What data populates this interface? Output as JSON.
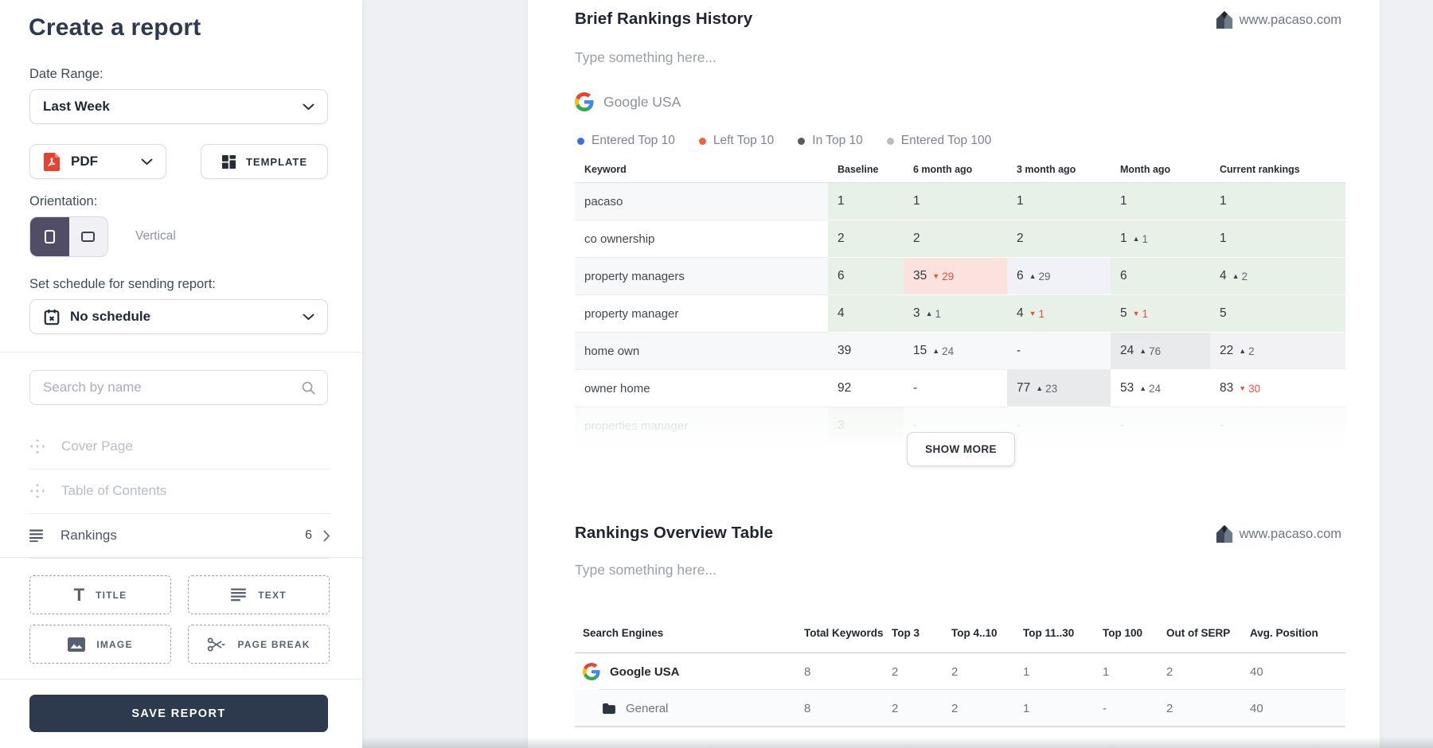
{
  "sidebar": {
    "title": "Create a report",
    "date_range_label": "Date Range:",
    "date_range_value": "Last Week",
    "format_value": "PDF",
    "template_label": "TEMPLATE",
    "orientation_label": "Orientation:",
    "orientation_value": "Vertical",
    "schedule_label": "Set schedule for sending report:",
    "schedule_value": "No schedule",
    "search_placeholder": "Search by name",
    "sections": [
      {
        "label": "Cover Page",
        "disabled": true
      },
      {
        "label": "Table of Contents",
        "disabled": true
      },
      {
        "label": "Rankings",
        "disabled": false,
        "count": "6"
      }
    ],
    "widgets": [
      {
        "icon": "title-icon",
        "label": "TITLE"
      },
      {
        "icon": "text-icon",
        "label": "TEXT"
      },
      {
        "icon": "image-icon",
        "label": "IMAGE"
      },
      {
        "icon": "page-break-icon",
        "label": "PAGE BREAK"
      }
    ],
    "save_label": "SAVE REPORT"
  },
  "report": {
    "domain": "www.pacaso.com",
    "brief": {
      "title": "Brief Rankings History",
      "placeholder": "Type something here...",
      "engine": "Google USA",
      "show_more": "SHOW MORE",
      "legend": [
        {
          "label": "Entered Top 10",
          "color": "#3b6de4"
        },
        {
          "label": "Left Top 10",
          "color": "#f0623d"
        },
        {
          "label": "In Top 10",
          "color": "#565b63"
        },
        {
          "label": "Entered Top 100",
          "color": "#b9bdc3"
        }
      ],
      "table": {
        "columns": [
          "Keyword",
          "Baseline",
          "6 month ago",
          "3 month ago",
          "Month ago",
          "Current rankings"
        ],
        "rows": [
          {
            "keyword": "pacaso",
            "cells": [
              {
                "v": "1",
                "bg": "green"
              },
              {
                "v": "1",
                "bg": "green"
              },
              {
                "v": "1",
                "bg": "green"
              },
              {
                "v": "1",
                "bg": "green"
              },
              {
                "v": "1",
                "bg": "green"
              }
            ]
          },
          {
            "keyword": "co ownership",
            "cells": [
              {
                "v": "2",
                "bg": "green"
              },
              {
                "v": "2",
                "bg": "green"
              },
              {
                "v": "2",
                "bg": "green"
              },
              {
                "v": "1",
                "delta": "1",
                "dir": "up",
                "bg": "green"
              },
              {
                "v": "1",
                "bg": "green"
              }
            ]
          },
          {
            "keyword": "property managers",
            "cells": [
              {
                "v": "6",
                "bg": "green"
              },
              {
                "v": "35",
                "delta": "29",
                "dir": "down",
                "bg": "pink"
              },
              {
                "v": "6",
                "delta": "29",
                "dir": "up",
                "bg": "lavender"
              },
              {
                "v": "6",
                "bg": "green"
              },
              {
                "v": "4",
                "delta": "2",
                "dir": "up",
                "bg": "green"
              }
            ]
          },
          {
            "keyword": "property manager",
            "cells": [
              {
                "v": "4",
                "bg": "green"
              },
              {
                "v": "3",
                "delta": "1",
                "dir": "up",
                "bg": "green"
              },
              {
                "v": "4",
                "delta": "1",
                "dir": "down",
                "bg": "green"
              },
              {
                "v": "5",
                "delta": "1",
                "dir": "down",
                "bg": "green"
              },
              {
                "v": "5",
                "bg": "green"
              }
            ]
          },
          {
            "keyword": "home own",
            "cells": [
              {
                "v": "39"
              },
              {
                "v": "15",
                "delta": "24",
                "dir": "up"
              },
              {
                "v": "-"
              },
              {
                "v": "24",
                "delta": "76",
                "dir": "up",
                "bg": "gray"
              },
              {
                "v": "22",
                "delta": "2",
                "dir": "up",
                "bg": "graylight"
              }
            ]
          },
          {
            "keyword": "owner home",
            "cells": [
              {
                "v": "92"
              },
              {
                "v": "-"
              },
              {
                "v": "77",
                "delta": "23",
                "dir": "up",
                "bg": "gray"
              },
              {
                "v": "53",
                "delta": "24",
                "dir": "up"
              },
              {
                "v": "83",
                "delta": "30",
                "dir": "down"
              }
            ]
          },
          {
            "keyword": "properties manager",
            "faded": true,
            "cells": [
              {
                "v": "3",
                "bg": "green"
              },
              {
                "v": "-"
              },
              {
                "v": "-"
              },
              {
                "v": "-"
              },
              {
                "v": "-"
              }
            ]
          }
        ]
      }
    },
    "overview": {
      "title": "Rankings Overview Table",
      "placeholder": "Type something here...",
      "table": {
        "columns": [
          "Search Engines",
          "Total Keywords",
          "Top 3",
          "Top 4..10",
          "Top 11..30",
          "Top 100",
          "Out of SERP",
          "Avg. Position"
        ],
        "rows": [
          {
            "icon": "google-icon",
            "name": "Google USA",
            "bold": true,
            "indent": false,
            "values": [
              "8",
              "2",
              "2",
              "1",
              "1",
              "2",
              "40"
            ]
          },
          {
            "icon": "folder-icon",
            "name": "General",
            "bold": false,
            "indent": true,
            "shade": true,
            "values": [
              "8",
              "2",
              "2",
              "1",
              "-",
              "2",
              "40"
            ]
          }
        ]
      }
    }
  }
}
